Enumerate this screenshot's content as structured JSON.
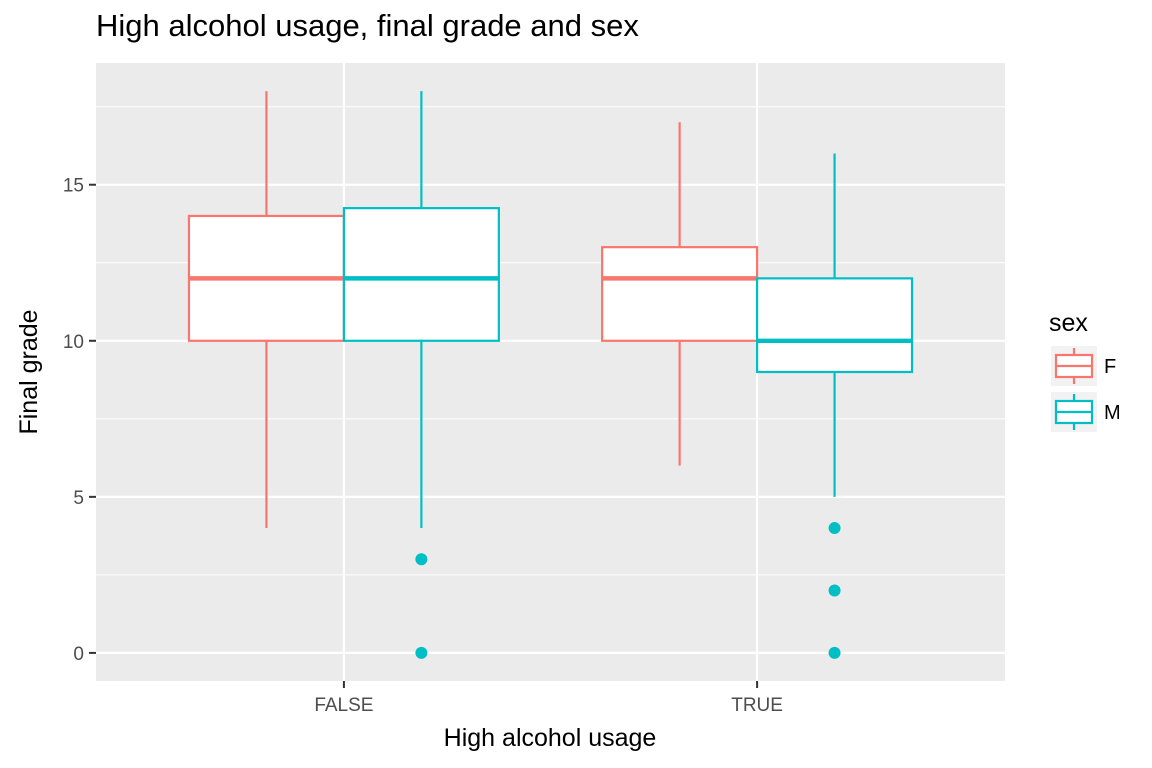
{
  "chart_data": {
    "type": "boxplot",
    "title": "High alcohol usage, final grade and sex",
    "xlabel": "High alcohol usage",
    "ylabel": "Final grade",
    "categories": [
      "FALSE",
      "TRUE"
    ],
    "y_ticks": [
      0,
      5,
      10,
      15
    ],
    "ylim": [
      -0.9,
      18.9
    ],
    "grid": true,
    "legend": {
      "title": "sex",
      "position": "right"
    },
    "series": [
      {
        "name": "F",
        "color": "#F8766D",
        "boxes": [
          {
            "category": "FALSE",
            "whisker_low": 4,
            "q1": 10,
            "median": 12,
            "q3": 14,
            "whisker_high": 18,
            "outliers": []
          },
          {
            "category": "TRUE",
            "whisker_low": 6,
            "q1": 10,
            "median": 12,
            "q3": 13,
            "whisker_high": 17,
            "outliers": []
          }
        ]
      },
      {
        "name": "M",
        "color": "#00BFC4",
        "boxes": [
          {
            "category": "FALSE",
            "whisker_low": 4,
            "q1": 10,
            "median": 12,
            "q3": 14.25,
            "whisker_high": 18,
            "outliers": [
              3,
              0
            ]
          },
          {
            "category": "TRUE",
            "whisker_low": 5,
            "q1": 9,
            "median": 10,
            "q3": 12,
            "whisker_high": 16,
            "outliers": [
              4,
              2,
              0
            ]
          }
        ]
      }
    ]
  }
}
